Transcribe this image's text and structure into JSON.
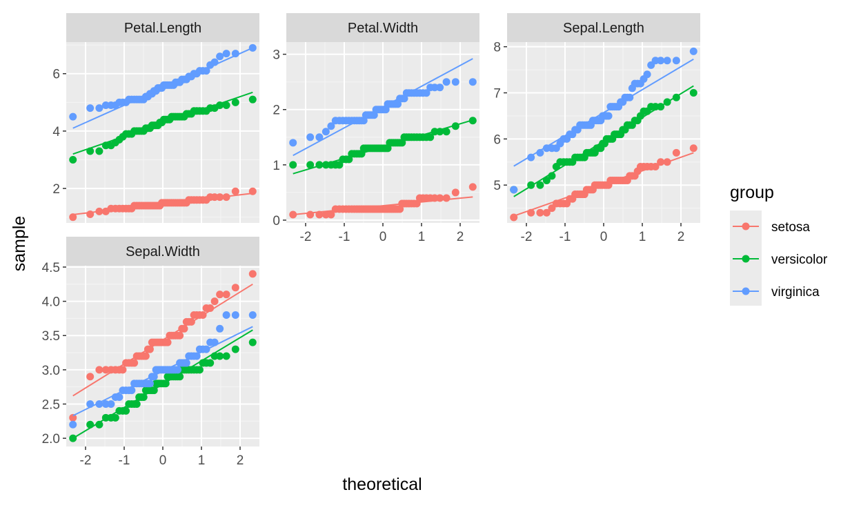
{
  "chart_data": {
    "type": "scatter",
    "subtype": "qq-plot-with-qq-line",
    "title": "",
    "xlabel": "theoretical",
    "ylabel": "sample",
    "layout": "facet_wrap, 3 columns, fixed x / free y scales",
    "grid": true,
    "legend": {
      "title": "group",
      "position": "right",
      "entries": [
        {
          "label": "setosa",
          "color": "#F8766D"
        },
        {
          "label": "versicolor",
          "color": "#00BA38"
        },
        {
          "label": "virginica",
          "color": "#619CFF"
        }
      ]
    },
    "x_ticks": [
      "-2",
      "-1",
      "0",
      "1",
      "2"
    ],
    "x_tick_values": [
      -2,
      -1,
      0,
      1,
      2
    ],
    "xlim": [
      -2.5,
      2.5
    ],
    "series_colors": {
      "setosa": "#F8766D",
      "versicolor": "#00BA38",
      "virginica": "#619CFF"
    },
    "panels": [
      {
        "label": "Petal.Length",
        "ylim": [
          0.8,
          7.1
        ],
        "y_ticks": [
          "2",
          "4",
          "6"
        ],
        "y_tick_values": [
          2,
          4,
          6
        ],
        "show_x_axis": false,
        "series": [
          {
            "name": "setosa",
            "values": [
              1.0,
              1.1,
              1.2,
              1.2,
              1.3,
              1.3,
              1.3,
              1.3,
              1.3,
              1.3,
              1.3,
              1.4,
              1.4,
              1.4,
              1.4,
              1.4,
              1.4,
              1.4,
              1.4,
              1.4,
              1.4,
              1.4,
              1.4,
              1.4,
              1.5,
              1.5,
              1.5,
              1.5,
              1.5,
              1.5,
              1.5,
              1.5,
              1.5,
              1.5,
              1.5,
              1.5,
              1.5,
              1.6,
              1.6,
              1.6,
              1.6,
              1.6,
              1.6,
              1.6,
              1.7,
              1.7,
              1.7,
              1.7,
              1.9,
              1.9
            ],
            "line": [
              1.09,
              1.83
            ]
          },
          {
            "name": "versicolor",
            "values": [
              3.0,
              3.3,
              3.3,
              3.5,
              3.5,
              3.6,
              3.7,
              3.8,
              3.9,
              3.9,
              3.9,
              4.0,
              4.0,
              4.0,
              4.0,
              4.0,
              4.1,
              4.1,
              4.1,
              4.2,
              4.2,
              4.2,
              4.2,
              4.3,
              4.3,
              4.4,
              4.4,
              4.4,
              4.4,
              4.5,
              4.5,
              4.5,
              4.5,
              4.5,
              4.5,
              4.5,
              4.6,
              4.6,
              4.6,
              4.7,
              4.7,
              4.7,
              4.7,
              4.7,
              4.8,
              4.8,
              4.9,
              4.9,
              5.0,
              5.1
            ],
            "line": [
              3.2,
              5.35
            ]
          },
          {
            "name": "virginica",
            "values": [
              4.5,
              4.8,
              4.8,
              4.9,
              4.9,
              4.9,
              5.0,
              5.0,
              5.0,
              5.1,
              5.1,
              5.1,
              5.1,
              5.1,
              5.1,
              5.1,
              5.2,
              5.2,
              5.3,
              5.3,
              5.4,
              5.4,
              5.5,
              5.5,
              5.5,
              5.6,
              5.6,
              5.6,
              5.6,
              5.6,
              5.6,
              5.7,
              5.7,
              5.7,
              5.8,
              5.8,
              5.8,
              5.9,
              5.9,
              6.0,
              6.0,
              6.1,
              6.1,
              6.1,
              6.3,
              6.4,
              6.6,
              6.7,
              6.7,
              6.9
            ],
            "line": [
              4.1,
              6.9
            ]
          }
        ]
      },
      {
        "label": "Petal.Width",
        "ylim": [
          -0.05,
          3.22
        ],
        "y_ticks": [
          "0",
          "1",
          "2",
          "3"
        ],
        "y_tick_values": [
          0,
          1,
          2,
          3
        ],
        "show_x_axis": true,
        "series": [
          {
            "name": "setosa",
            "values": [
              0.1,
              0.1,
              0.1,
              0.1,
              0.1,
              0.2,
              0.2,
              0.2,
              0.2,
              0.2,
              0.2,
              0.2,
              0.2,
              0.2,
              0.2,
              0.2,
              0.2,
              0.2,
              0.2,
              0.2,
              0.2,
              0.2,
              0.2,
              0.2,
              0.2,
              0.2,
              0.2,
              0.2,
              0.2,
              0.2,
              0.2,
              0.2,
              0.2,
              0.2,
              0.3,
              0.3,
              0.3,
              0.3,
              0.3,
              0.3,
              0.3,
              0.4,
              0.4,
              0.4,
              0.4,
              0.4,
              0.4,
              0.4,
              0.5,
              0.6
            ],
            "line": [
              0.1,
              0.42
            ]
          },
          {
            "name": "versicolor",
            "values": [
              1.0,
              1.0,
              1.0,
              1.0,
              1.0,
              1.0,
              1.0,
              1.1,
              1.1,
              1.1,
              1.2,
              1.2,
              1.2,
              1.2,
              1.2,
              1.3,
              1.3,
              1.3,
              1.3,
              1.3,
              1.3,
              1.3,
              1.3,
              1.3,
              1.3,
              1.3,
              1.3,
              1.3,
              1.4,
              1.4,
              1.4,
              1.4,
              1.4,
              1.4,
              1.4,
              1.5,
              1.5,
              1.5,
              1.5,
              1.5,
              1.5,
              1.5,
              1.5,
              1.5,
              1.5,
              1.6,
              1.6,
              1.6,
              1.7,
              1.8
            ],
            "line": [
              0.84,
              1.81
            ]
          },
          {
            "name": "virginica",
            "values": [
              1.4,
              1.5,
              1.5,
              1.6,
              1.7,
              1.8,
              1.8,
              1.8,
              1.8,
              1.8,
              1.8,
              1.8,
              1.8,
              1.8,
              1.8,
              1.8,
              1.9,
              1.9,
              1.9,
              1.9,
              1.9,
              2.0,
              2.0,
              2.0,
              2.0,
              2.0,
              2.0,
              2.1,
              2.1,
              2.1,
              2.1,
              2.1,
              2.1,
              2.2,
              2.2,
              2.2,
              2.3,
              2.3,
              2.3,
              2.3,
              2.3,
              2.3,
              2.3,
              2.3,
              2.4,
              2.4,
              2.4,
              2.5,
              2.5,
              2.5
            ],
            "line": [
              1.17,
              2.92
            ]
          }
        ]
      },
      {
        "label": "Sepal.Length",
        "ylim": [
          4.18,
          8.1
        ],
        "y_ticks": [
          "5",
          "6",
          "7",
          "8"
        ],
        "y_tick_values": [
          5,
          6,
          7,
          8
        ],
        "show_x_axis": true,
        "series": [
          {
            "name": "setosa",
            "values": [
              4.3,
              4.4,
              4.4,
              4.4,
              4.5,
              4.6,
              4.6,
              4.6,
              4.6,
              4.7,
              4.7,
              4.8,
              4.8,
              4.8,
              4.8,
              4.8,
              4.9,
              4.9,
              4.9,
              4.9,
              5.0,
              5.0,
              5.0,
              5.0,
              5.0,
              5.0,
              5.0,
              5.0,
              5.1,
              5.1,
              5.1,
              5.1,
              5.1,
              5.1,
              5.1,
              5.1,
              5.1,
              5.2,
              5.2,
              5.2,
              5.3,
              5.4,
              5.4,
              5.4,
              5.4,
              5.4,
              5.5,
              5.5,
              5.7,
              5.8
            ],
            "line": [
              4.33,
              5.7
            ]
          },
          {
            "name": "versicolor",
            "values": [
              4.9,
              5.0,
              5.0,
              5.1,
              5.2,
              5.4,
              5.5,
              5.5,
              5.5,
              5.5,
              5.5,
              5.6,
              5.6,
              5.6,
              5.6,
              5.6,
              5.7,
              5.7,
              5.7,
              5.7,
              5.7,
              5.8,
              5.8,
              5.8,
              5.9,
              5.9,
              6.0,
              6.0,
              6.0,
              6.0,
              6.1,
              6.1,
              6.1,
              6.1,
              6.2,
              6.2,
              6.3,
              6.3,
              6.3,
              6.4,
              6.4,
              6.5,
              6.6,
              6.6,
              6.7,
              6.7,
              6.7,
              6.8,
              6.9,
              7.0
            ],
            "line": [
              4.75,
              7.15
            ]
          },
          {
            "name": "virginica",
            "values": [
              4.9,
              5.6,
              5.7,
              5.8,
              5.8,
              5.8,
              5.9,
              6.0,
              6.0,
              6.1,
              6.1,
              6.2,
              6.2,
              6.3,
              6.3,
              6.3,
              6.3,
              6.3,
              6.3,
              6.4,
              6.4,
              6.4,
              6.4,
              6.4,
              6.5,
              6.5,
              6.5,
              6.5,
              6.7,
              6.7,
              6.7,
              6.7,
              6.7,
              6.8,
              6.8,
              6.9,
              6.9,
              6.9,
              7.1,
              7.2,
              7.2,
              7.2,
              7.3,
              7.4,
              7.6,
              7.7,
              7.7,
              7.7,
              7.7,
              7.9
            ],
            "line": [
              5.41,
              7.73
            ]
          }
        ]
      },
      {
        "label": "Sepal.Width",
        "ylim": [
          1.88,
          4.52
        ],
        "y_ticks": [
          "2.0",
          "2.5",
          "3.0",
          "3.5",
          "4.0",
          "4.5"
        ],
        "y_tick_values": [
          2.0,
          2.5,
          3.0,
          3.5,
          4.0,
          4.5
        ],
        "show_x_axis": true,
        "series": [
          {
            "name": "setosa",
            "values": [
              2.3,
              2.9,
              3.0,
              3.0,
              3.0,
              3.0,
              3.0,
              3.0,
              3.1,
              3.1,
              3.1,
              3.1,
              3.2,
              3.2,
              3.2,
              3.2,
              3.2,
              3.3,
              3.3,
              3.4,
              3.4,
              3.4,
              3.4,
              3.4,
              3.4,
              3.4,
              3.4,
              3.4,
              3.5,
              3.5,
              3.5,
              3.5,
              3.5,
              3.5,
              3.6,
              3.6,
              3.7,
              3.7,
              3.7,
              3.8,
              3.8,
              3.8,
              3.8,
              3.9,
              3.9,
              4.0,
              4.1,
              4.1,
              4.2,
              4.4
            ],
            "line": [
              2.62,
              4.25
            ]
          },
          {
            "name": "versicolor",
            "values": [
              2.0,
              2.2,
              2.2,
              2.3,
              2.3,
              2.3,
              2.4,
              2.4,
              2.4,
              2.5,
              2.5,
              2.5,
              2.5,
              2.6,
              2.6,
              2.6,
              2.7,
              2.7,
              2.7,
              2.7,
              2.7,
              2.8,
              2.8,
              2.8,
              2.8,
              2.8,
              2.8,
              2.9,
              2.9,
              2.9,
              2.9,
              2.9,
              2.9,
              2.9,
              3.0,
              3.0,
              3.0,
              3.0,
              3.0,
              3.0,
              3.0,
              3.0,
              3.1,
              3.1,
              3.1,
              3.2,
              3.2,
              3.2,
              3.3,
              3.4
            ],
            "line": [
              2.0,
              3.58
            ]
          },
          {
            "name": "virginica",
            "values": [
              2.2,
              2.5,
              2.5,
              2.5,
              2.5,
              2.6,
              2.6,
              2.7,
              2.7,
              2.7,
              2.7,
              2.8,
              2.8,
              2.8,
              2.8,
              2.8,
              2.8,
              2.8,
              2.8,
              2.9,
              2.9,
              3.0,
              3.0,
              3.0,
              3.0,
              3.0,
              3.0,
              3.0,
              3.0,
              3.0,
              3.0,
              3.0,
              3.0,
              3.1,
              3.1,
              3.1,
              3.1,
              3.2,
              3.2,
              3.2,
              3.2,
              3.3,
              3.3,
              3.3,
              3.4,
              3.4,
              3.6,
              3.8,
              3.8,
              3.8
            ],
            "line": [
              2.33,
              3.63
            ]
          }
        ]
      }
    ]
  }
}
